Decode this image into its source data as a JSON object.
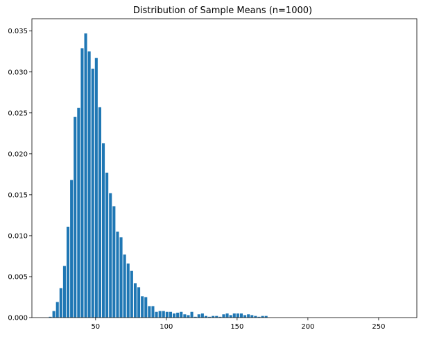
{
  "chart_data": {
    "type": "bar",
    "title": "Distribution of Sample Means (n=1000)",
    "xlabel": "",
    "ylabel": "",
    "xlim": [
      5,
      277
    ],
    "ylim": [
      0,
      0.0365
    ],
    "bin_width": 2.5,
    "x_ticks": [
      {
        "value": 50,
        "label": "50"
      },
      {
        "value": 100,
        "label": "100"
      },
      {
        "value": 150,
        "label": "150"
      },
      {
        "value": 200,
        "label": "200"
      },
      {
        "value": 250,
        "label": "250"
      }
    ],
    "y_ticks": [
      {
        "value": 0,
        "label": "0.000"
      },
      {
        "value": 0.005,
        "label": "0.005"
      },
      {
        "value": 0.01,
        "label": "0.010"
      },
      {
        "value": 0.015,
        "label": "0.015"
      },
      {
        "value": 0.02,
        "label": "0.020"
      },
      {
        "value": 0.025,
        "label": "0.025"
      },
      {
        "value": 0.03,
        "label": "0.030"
      },
      {
        "value": 0.035,
        "label": "0.035"
      }
    ],
    "grid": false,
    "bar_color": "#1f77b4",
    "x": [
      18.0,
      20.5,
      23.0,
      25.5,
      28.0,
      30.5,
      33.0,
      35.5,
      38.0,
      40.5,
      43.0,
      45.5,
      48.0,
      50.5,
      53.0,
      55.5,
      58.0,
      60.5,
      63.0,
      65.5,
      68.0,
      70.5,
      73.0,
      75.5,
      78.0,
      80.5,
      83.0,
      85.5,
      88.0,
      90.5,
      93.0,
      95.5,
      98.0,
      100.5,
      103.0,
      105.5,
      108.0,
      110.5,
      113.0,
      115.5,
      118.0,
      120.5,
      123.0,
      125.5,
      128.0,
      130.5,
      133.0,
      135.5,
      138.0,
      140.5,
      143.0,
      145.5,
      148.0,
      150.5,
      153.0,
      155.5,
      158.0,
      160.5,
      163.0,
      165.5,
      168.0,
      170.5
    ],
    "values": [
      0.0001,
      0.0008,
      0.0019,
      0.0036,
      0.0063,
      0.0111,
      0.0168,
      0.0245,
      0.0256,
      0.0329,
      0.0347,
      0.0325,
      0.0304,
      0.0317,
      0.0257,
      0.0213,
      0.0177,
      0.0152,
      0.0136,
      0.0105,
      0.0098,
      0.0077,
      0.0066,
      0.0057,
      0.0042,
      0.0037,
      0.0026,
      0.0025,
      0.0014,
      0.0014,
      0.0007,
      0.0008,
      0.0008,
      0.0007,
      0.0007,
      0.0005,
      0.0006,
      0.0007,
      0.0004,
      0.0003,
      0.0007,
      0.0001,
      0.0004,
      0.0005,
      0.0002,
      0.0001,
      0.0002,
      0.0002,
      0.0001,
      0.0004,
      0.0005,
      0.0003,
      0.0005,
      0.0005,
      0.0005,
      0.0003,
      0.0004,
      0.0003,
      0.0002,
      0.0001,
      0.0002,
      0.0002
    ]
  }
}
